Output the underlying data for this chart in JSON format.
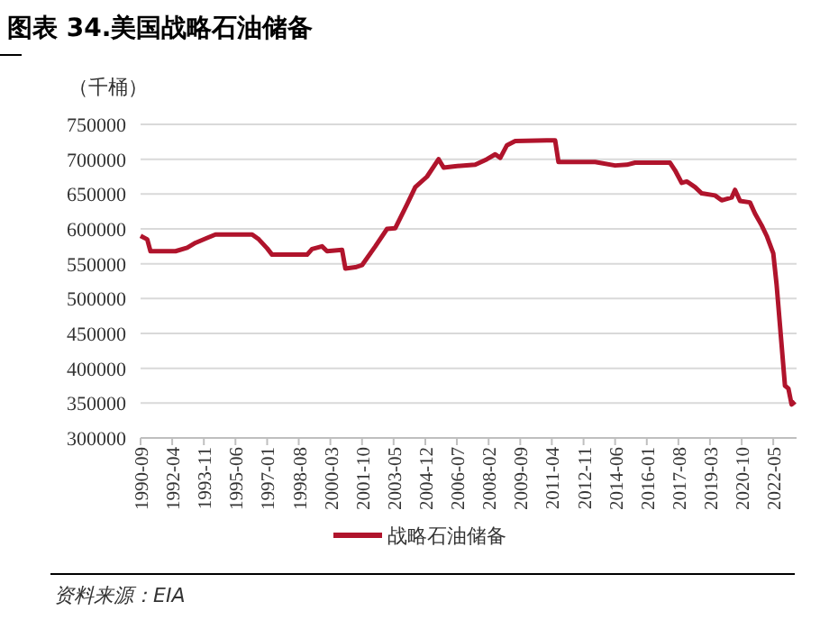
{
  "chart_data": {
    "type": "line",
    "title": "图表 34.美国战略石油储备",
    "ylabel": "（千桶）",
    "annotations": [
      "资料来源：EIA"
    ],
    "x": [
      "1990-09",
      "1991-01",
      "1991-03",
      "1992-06",
      "1993-01",
      "1993-06",
      "1994-01",
      "1994-06",
      "1996-04",
      "1996-08",
      "1997-01",
      "1997-04",
      "1999-01",
      "1999-04",
      "1999-10",
      "2000-01",
      "2000-10",
      "2000-12",
      "2001-06",
      "2001-10",
      "2002-06",
      "2003-01",
      "2003-06",
      "2004-01",
      "2004-06",
      "2005-01",
      "2005-08",
      "2005-11",
      "2006-06",
      "2007-06",
      "2008-01",
      "2008-06",
      "2008-09",
      "2009-01",
      "2009-06",
      "2011-01",
      "2011-06",
      "2011-08",
      "2013-06",
      "2014-06",
      "2015-01",
      "2015-06",
      "2017-03",
      "2017-06",
      "2017-10",
      "2018-01",
      "2018-06",
      "2018-10",
      "2019-06",
      "2019-10",
      "2020-04",
      "2020-06",
      "2020-09",
      "2021-03",
      "2021-06",
      "2021-10",
      "2022-01",
      "2022-05",
      "2022-07",
      "2022-12",
      "2023-02",
      "2023-04",
      "2023-06"
    ],
    "series": [
      {
        "name": "战略石油储备",
        "color": "#b0142c",
        "values": [
          590000,
          585000,
          568000,
          568000,
          573000,
          580000,
          587000,
          592000,
          592000,
          585000,
          572000,
          563000,
          563000,
          571000,
          575000,
          568000,
          570000,
          543000,
          545000,
          548000,
          575000,
          600000,
          601000,
          635000,
          660000,
          675000,
          700000,
          688000,
          690000,
          692000,
          700000,
          707000,
          702000,
          720000,
          726000,
          727000,
          727000,
          696000,
          696000,
          691000,
          692000,
          695000,
          695000,
          684000,
          666000,
          668000,
          660000,
          651000,
          648000,
          641000,
          645000,
          656000,
          640000,
          638000,
          622000,
          605000,
          590000,
          565000,
          520000,
          375000,
          371000,
          348000,
          352000
        ]
      }
    ],
    "xlim": [
      "1990-09",
      "2023-07"
    ],
    "xticks": [
      "1990-09",
      "1992-04",
      "1993-11",
      "1995-06",
      "1997-01",
      "1998-08",
      "2000-03",
      "2001-10",
      "2003-05",
      "2004-12",
      "2006-07",
      "2008-02",
      "2009-09",
      "2011-04",
      "2012-11",
      "2014-06",
      "2016-01",
      "2017-08",
      "2019-03",
      "2020-10",
      "2022-05"
    ],
    "ylim": [
      300000,
      750000
    ],
    "yticks": [
      300000,
      350000,
      400000,
      450000,
      500000,
      550000,
      600000,
      650000,
      700000,
      750000
    ],
    "grid": "y",
    "legend": "bottom",
    "line_style": "solid"
  }
}
